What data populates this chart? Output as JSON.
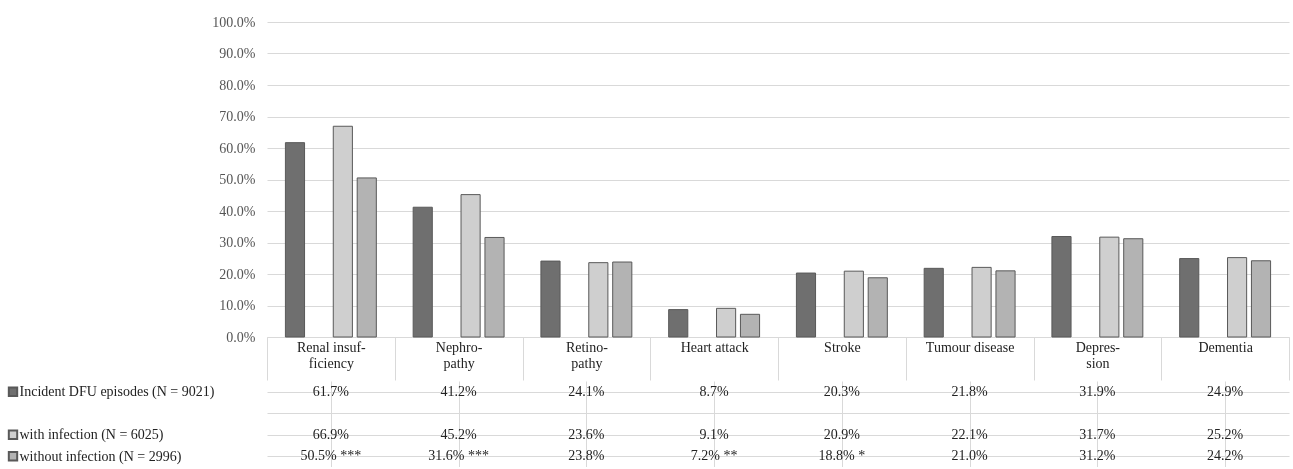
{
  "chart_data": {
    "type": "bar",
    "categories": [
      "Renal insuf-\nficiency",
      "Nephro-\npathy",
      "Retino-\npathy",
      "Heart attack",
      "Stroke",
      "Tumour disease",
      "Depres-\nsion",
      "Dementia"
    ],
    "series": [
      {
        "name": "Incident DFU episodes (N = 9021)",
        "color": "#6f6f6f",
        "values": [
          61.7,
          41.2,
          24.1,
          8.7,
          20.3,
          21.8,
          31.9,
          24.9
        ],
        "value_labels": [
          "61.7%",
          "41.2%",
          "24.1%",
          "8.7%",
          "20.3%",
          "21.8%",
          "31.9%",
          "24.9%"
        ]
      },
      {
        "values": [
          null,
          null,
          null,
          null,
          null,
          null,
          null,
          null
        ]
      },
      {
        "name": "with infection (N = 6025)",
        "color": "#cfcfcf",
        "values": [
          66.9,
          45.2,
          23.6,
          9.1,
          20.9,
          22.1,
          31.7,
          25.2
        ],
        "value_labels": [
          "66.9%",
          "45.2%",
          "23.6%",
          "9.1%",
          "20.9%",
          "22.1%",
          "31.7%",
          "25.2%"
        ]
      },
      {
        "name": "without infection (N = 2996)",
        "color": "#b3b3b3",
        "values": [
          50.5,
          31.6,
          23.8,
          7.2,
          18.8,
          21.0,
          31.2,
          24.2
        ],
        "value_labels": [
          "50.5%     ***",
          "31.6%     ***",
          "23.8%",
          "7.2%     **",
          "18.8%     *",
          "21.0%",
          "31.2%",
          "24.2%"
        ]
      }
    ],
    "ylim": [
      0,
      100
    ],
    "yticks": [
      {
        "value": 0,
        "label": "0.0%"
      },
      {
        "value": 10,
        "label": "10.0%"
      },
      {
        "value": 20,
        "label": "20.0%"
      },
      {
        "value": 30,
        "label": "30.0%"
      },
      {
        "value": 40,
        "label": "40.0%"
      },
      {
        "value": 50,
        "label": "50.0%"
      },
      {
        "value": 60,
        "label": "60.0%"
      },
      {
        "value": 70,
        "label": "70.0%"
      },
      {
        "value": 80,
        "label": "80.0%"
      },
      {
        "value": 90,
        "label": "90.0%"
      },
      {
        "value": 100,
        "label": "100.0%"
      }
    ],
    "grid": "y",
    "legend": "bottom left"
  }
}
